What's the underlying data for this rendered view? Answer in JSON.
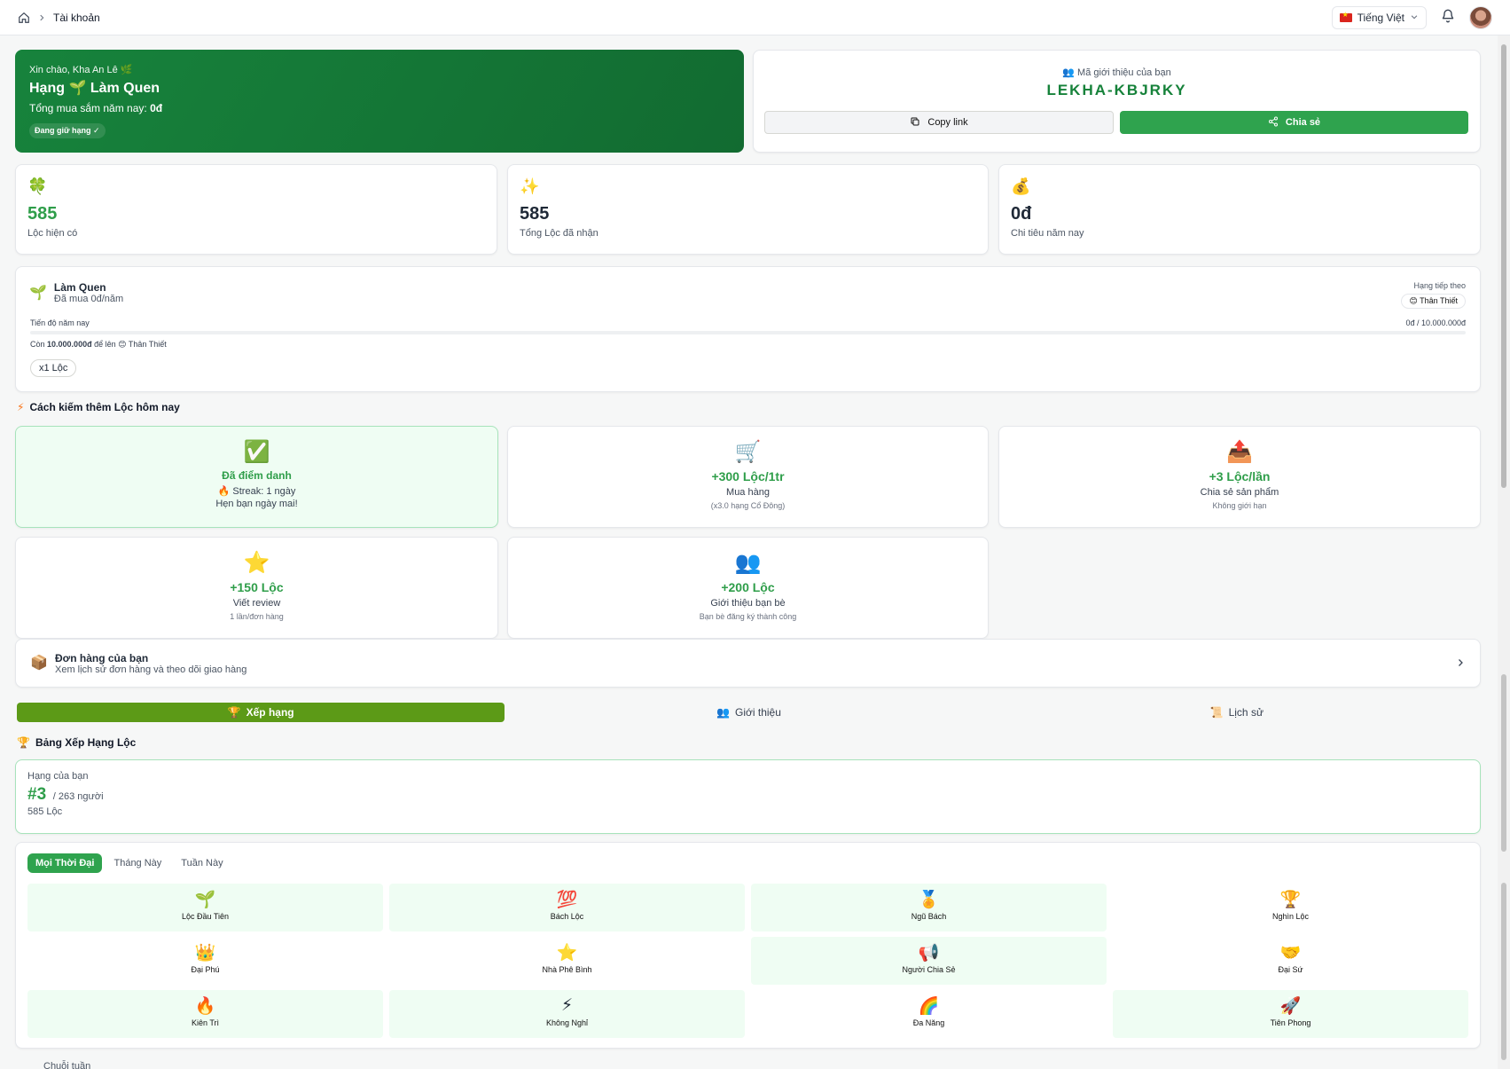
{
  "breadcrumb": {
    "page": "Tài khoản"
  },
  "header": {
    "language": "Tiếng Việt"
  },
  "hero": {
    "greeting": "Xin chào, Kha An Lê 🌿",
    "rank_prefix": "Hạng",
    "rank_icon": "🌱",
    "rank_name": "Làm Quen",
    "total_label": "Tổng mua sắm năm nay:",
    "total_value": "0đ",
    "hold_badge": "Đang giữ hạng ✓"
  },
  "referral": {
    "label": "Mã giới thiệu của bạn",
    "code": "LEKHA-KBJRKY",
    "copy_label": "Copy link",
    "share_label": "Chia sẻ"
  },
  "stats": [
    {
      "icon": "🍀",
      "value": "585",
      "label": "Lộc hiện có",
      "color": "#2f9e4a"
    },
    {
      "icon": "✨",
      "value": "585",
      "label": "Tổng Lộc đã nhận",
      "color": "#111827"
    },
    {
      "icon": "💰",
      "value": "0đ",
      "label": "Chi tiêu năm nay",
      "color": "#111827"
    }
  ],
  "tier": {
    "icon": "🌱",
    "name": "Làm Quen",
    "spent": "Đã mua 0đ/năm",
    "next_label": "Hạng tiếp theo",
    "next_icon": "😊",
    "next_name": "Thân Thiết",
    "progress_label": "Tiến độ năm nay",
    "progress_value": "0đ / 10.000.000đ",
    "progress_fraction": 0,
    "remain_prefix": "Còn",
    "remain_amount": "10.000.000đ",
    "remain_suffix": "để lên",
    "remain_target": "Thân Thiết",
    "multiplier": "x1 Lộc"
  },
  "earn": {
    "title": "Cách kiếm thêm Lộc hôm nay",
    "tasks": [
      {
        "icon": "✅",
        "value": "Đã điểm danh",
        "desc": "🔥 Streak: 1 ngày",
        "note": "Hẹn bạn ngày mai!",
        "done": true
      },
      {
        "icon": "🛒",
        "value": "+300 Lộc/1tr",
        "desc": "Mua hàng",
        "note": "(x3.0 hạng Cổ Đông)",
        "done": false
      },
      {
        "icon": "📤",
        "value": "+3 Lộc/lần",
        "desc": "Chia sẻ sản phẩm",
        "note": "Không giới hạn",
        "done": false
      },
      {
        "icon": "⭐",
        "value": "+150 Lộc",
        "desc": "Viết review",
        "note": "1 lần/đơn hàng",
        "done": false
      },
      {
        "icon": "👥",
        "value": "+200 Lộc",
        "desc": "Giới thiệu bạn bè",
        "note": "Bạn bè đăng ký thành công",
        "done": false
      }
    ]
  },
  "orders": {
    "title": "Đơn hàng của bạn",
    "subtitle": "Xem lịch sử đơn hàng và theo dõi giao hàng"
  },
  "tabs": [
    {
      "icon": "🏆",
      "label": "Xếp hạng",
      "active": true
    },
    {
      "icon": "👥",
      "label": "Giới thiệu",
      "active": false
    },
    {
      "icon": "📜",
      "label": "Lịch sử",
      "active": false
    }
  ],
  "leaderboard": {
    "title": "Bảng Xếp Hạng Lộc",
    "your_rank_label": "Hạng của bạn",
    "rank": "#3",
    "of_total": "/ 263 người",
    "points": "585 Lộc"
  },
  "filters": [
    "Mọi Thời Đại",
    "Tháng Này",
    "Tuần Này"
  ],
  "badges": [
    {
      "icon": "🌱",
      "name": "Lộc Đầu Tiên",
      "got": true
    },
    {
      "icon": "💯",
      "name": "Bách Lộc",
      "got": true
    },
    {
      "icon": "🏅",
      "name": "Ngũ Bách",
      "got": true
    },
    {
      "icon": "🏆",
      "name": "Nghìn Lộc",
      "got": false
    },
    {
      "icon": "👑",
      "name": "Đại Phú",
      "got": false
    },
    {
      "icon": "⭐",
      "name": "Nhà Phê Bình",
      "got": false
    },
    {
      "icon": "📢",
      "name": "Người Chia Sẻ",
      "got": true
    },
    {
      "icon": "🤝",
      "name": "Đại Sứ",
      "got": false
    },
    {
      "icon": "🔥",
      "name": "Kiên Trì",
      "got": true
    },
    {
      "icon": "⚡",
      "name": "Không Nghỉ",
      "got": true
    },
    {
      "icon": "🌈",
      "name": "Đa Năng",
      "got": false
    },
    {
      "icon": "🚀",
      "name": "Tiên Phong",
      "got": true
    }
  ],
  "footer_hint": "Chuỗi tuần"
}
